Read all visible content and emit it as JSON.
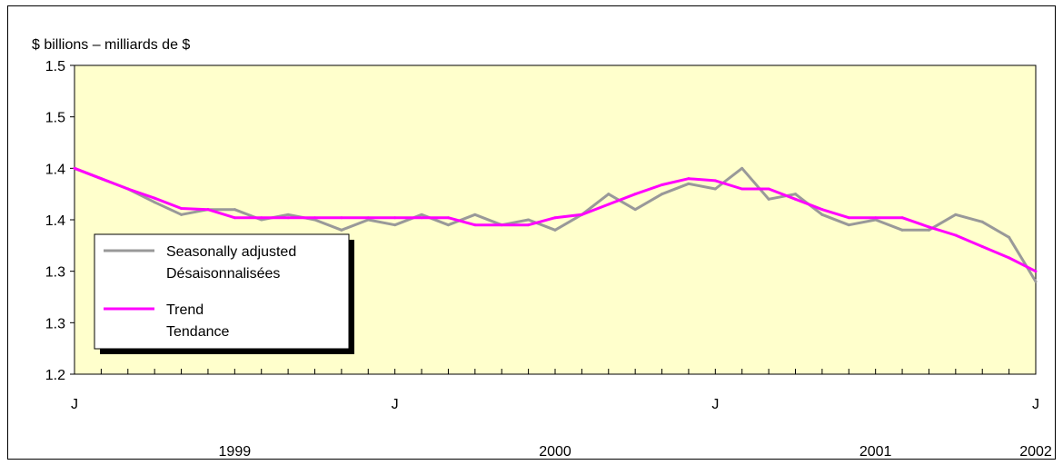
{
  "chart_data": {
    "type": "line",
    "unit_label": "$ billions – milliards de $",
    "ylim": [
      1.2,
      1.5
    ],
    "y_ticks": [
      {
        "value": 1.2,
        "label": "1.2"
      },
      {
        "value": 1.25,
        "label": "1.3"
      },
      {
        "value": 1.3,
        "label": "1.3"
      },
      {
        "value": 1.35,
        "label": "1.4"
      },
      {
        "value": 1.4,
        "label": "1.4"
      },
      {
        "value": 1.45,
        "label": "1.5"
      }
    ],
    "x_month_labels": [
      {
        "index": 0,
        "label": "J"
      },
      {
        "index": 12,
        "label": "J"
      },
      {
        "index": 24,
        "label": "J"
      },
      {
        "index": 36,
        "label": "J"
      }
    ],
    "x_year_labels": [
      {
        "index": 6,
        "label": "1999"
      },
      {
        "index": 18,
        "label": "2000"
      },
      {
        "index": 30,
        "label": "2001"
      },
      {
        "index": 36,
        "label": "2002"
      }
    ],
    "n_points": 37,
    "grid": false,
    "legend_position": "bottom-left",
    "series": [
      {
        "name": "Seasonally adjusted",
        "name_fr": "Désaisonnalisées",
        "color": "#999999",
        "values": [
          1.4,
          1.39,
          1.38,
          1.367,
          1.355,
          1.36,
          1.36,
          1.35,
          1.355,
          1.35,
          1.34,
          1.35,
          1.345,
          1.355,
          1.345,
          1.355,
          1.345,
          1.35,
          1.34,
          1.355,
          1.375,
          1.36,
          1.375,
          1.385,
          1.38,
          1.4,
          1.37,
          1.375,
          1.355,
          1.345,
          1.35,
          1.34,
          1.34,
          1.355,
          1.348,
          1.333,
          1.29
        ]
      },
      {
        "name": "Trend",
        "name_fr": "Tendance",
        "color": "#ff00ff",
        "values": [
          1.4,
          1.39,
          1.38,
          1.371,
          1.361,
          1.36,
          1.352,
          1.352,
          1.352,
          1.352,
          1.352,
          1.352,
          1.352,
          1.352,
          1.352,
          1.345,
          1.345,
          1.345,
          1.352,
          1.355,
          1.365,
          1.375,
          1.384,
          1.39,
          1.388,
          1.38,
          1.38,
          1.37,
          1.36,
          1.352,
          1.352,
          1.352,
          1.343,
          1.335,
          1.324,
          1.313,
          1.3
        ]
      }
    ]
  }
}
